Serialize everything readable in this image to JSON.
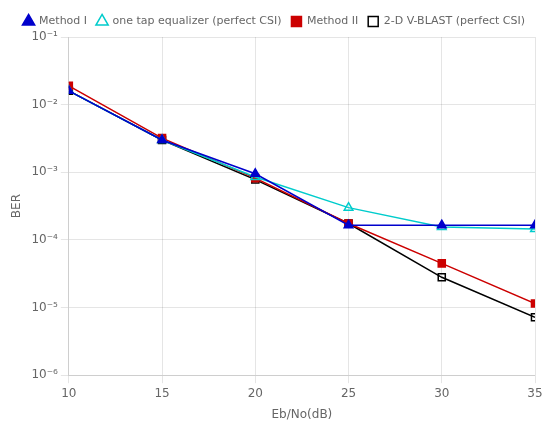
{
  "chart_data": {
    "type": "line",
    "x": [
      10,
      15,
      20,
      25,
      30,
      35
    ],
    "series": [
      {
        "name": "Method I",
        "color": "#0000cc",
        "marker": "triangle",
        "line_style": "solid",
        "values": [
          0.016,
          0.003,
          0.00095,
          0.000165,
          0.000165,
          0.000165
        ]
      },
      {
        "name": "one tap equalizer (perfect CSI)",
        "color": "#00cccc",
        "marker": "open triangle",
        "line_style": "solid",
        "values": [
          0.016,
          0.003,
          0.00085,
          0.0003,
          0.000155,
          0.000145
        ]
      },
      {
        "name": "Method II",
        "color": "#cc0000",
        "marker": "square",
        "line_style": "solid",
        "values": [
          0.019,
          0.0032,
          0.00082,
          0.000175,
          4.5e-05,
          1.15e-05
        ]
      },
      {
        "name": "2-D V-BLAST (perfect CSI)",
        "color": "#000000",
        "marker": "open square",
        "line_style": "solid",
        "values": [
          0.016,
          0.003,
          0.00078,
          0.000175,
          2.8e-05,
          7.2e-06
        ]
      }
    ],
    "xlabel": "Eb/No(dB)",
    "ylabel": "BER",
    "xlim": [
      10,
      35
    ],
    "ylim": [
      1e-06,
      0.1
    ],
    "xticks": [
      10,
      15,
      20,
      25,
      30,
      35
    ],
    "yticks": [
      {
        "value": 1e-06,
        "label": "10⁻⁶"
      },
      {
        "value": 1e-05,
        "label": "10⁻⁵"
      },
      {
        "value": 0.0001,
        "label": "10⁻⁴"
      },
      {
        "value": 0.001,
        "label": "10⁻³"
      },
      {
        "value": 0.01,
        "label": "10⁻²"
      },
      {
        "value": 0.1,
        "label": "10⁻¹"
      }
    ],
    "log": "y",
    "grid": true,
    "legend": "upper right"
  }
}
